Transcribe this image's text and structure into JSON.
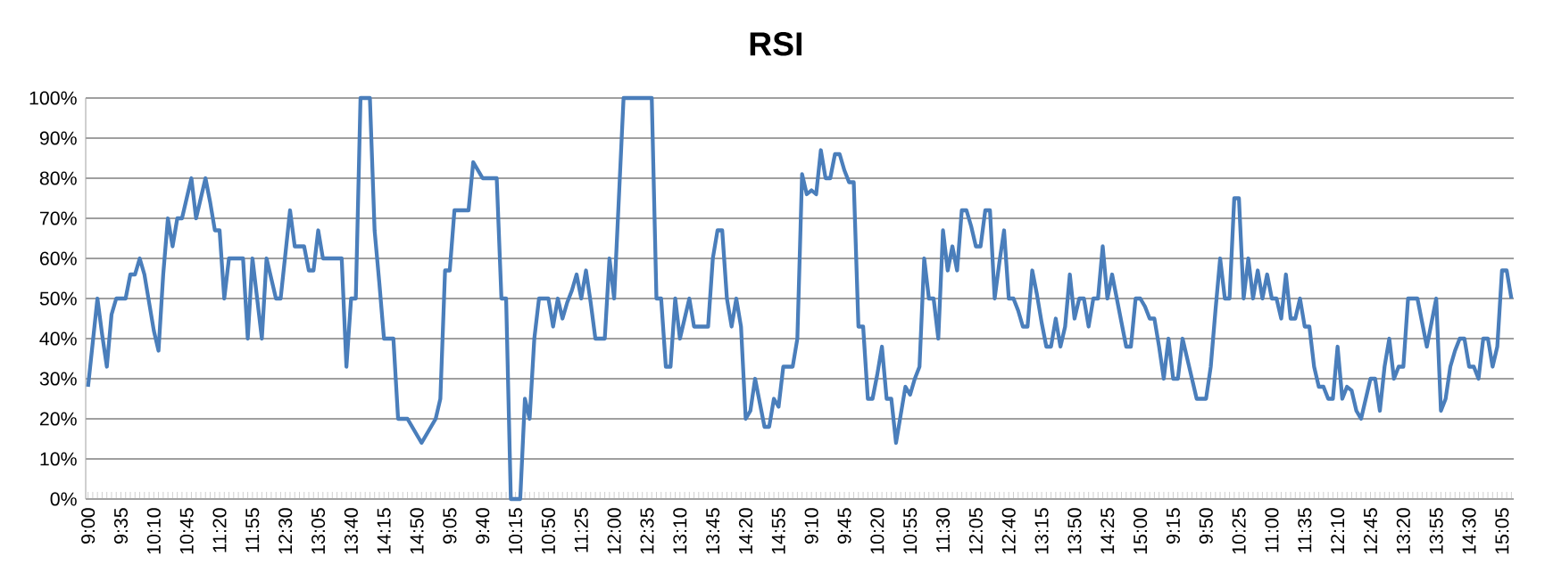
{
  "chart_data": {
    "type": "line",
    "title": "RSI",
    "categories": [
      "9:00",
      null,
      null,
      null,
      null,
      null,
      null,
      "9:35",
      null,
      null,
      null,
      null,
      null,
      null,
      "10:10",
      null,
      null,
      null,
      null,
      null,
      null,
      "10:45",
      null,
      null,
      null,
      null,
      null,
      null,
      "11:20",
      null,
      null,
      null,
      null,
      null,
      null,
      "11:55",
      null,
      null,
      null,
      null,
      null,
      null,
      "12:30",
      null,
      null,
      null,
      null,
      null,
      null,
      "13:05",
      null,
      null,
      null,
      null,
      null,
      null,
      "13:40",
      null,
      null,
      null,
      null,
      null,
      null,
      "14:15",
      null,
      null,
      null,
      null,
      null,
      null,
      "14:50",
      null,
      null,
      null,
      null,
      null,
      null,
      "9:05",
      null,
      null,
      null,
      null,
      null,
      null,
      "9:40",
      null,
      null,
      null,
      null,
      null,
      null,
      "10:15",
      null,
      null,
      null,
      null,
      null,
      null,
      "10:50",
      null,
      null,
      null,
      null,
      null,
      null,
      "11:25",
      null,
      null,
      null,
      null,
      null,
      null,
      "12:00",
      null,
      null,
      null,
      null,
      null,
      null,
      "12:35",
      null,
      null,
      null,
      null,
      null,
      null,
      "13:10",
      null,
      null,
      null,
      null,
      null,
      null,
      "13:45",
      null,
      null,
      null,
      null,
      null,
      null,
      "14:20",
      null,
      null,
      null,
      null,
      null,
      null,
      "14:55",
      null,
      null,
      null,
      null,
      null,
      null,
      "9:10",
      null,
      null,
      null,
      null,
      null,
      null,
      "9:45",
      null,
      null,
      null,
      null,
      null,
      null,
      "10:20",
      null,
      null,
      null,
      null,
      null,
      null,
      "10:55",
      null,
      null,
      null,
      null,
      null,
      null,
      "11:30",
      null,
      null,
      null,
      null,
      null,
      null,
      "12:05",
      null,
      null,
      null,
      null,
      null,
      null,
      "12:40",
      null,
      null,
      null,
      null,
      null,
      null,
      "13:15",
      null,
      null,
      null,
      null,
      null,
      null,
      "13:50",
      null,
      null,
      null,
      null,
      null,
      null,
      "14:25",
      null,
      null,
      null,
      null,
      null,
      null,
      "15:00",
      null,
      null,
      null,
      null,
      null,
      null,
      "9:15",
      null,
      null,
      null,
      null,
      null,
      null,
      "9:50",
      null,
      null,
      null,
      null,
      null,
      null,
      "10:25",
      null,
      null,
      null,
      null,
      null,
      null,
      "11:00",
      null,
      null,
      null,
      null,
      null,
      null,
      "11:35",
      null,
      null,
      null,
      null,
      null,
      null,
      "12:10",
      null,
      null,
      null,
      null,
      null,
      null,
      "12:45",
      null,
      null,
      null,
      null,
      null,
      null,
      "13:20",
      null,
      null,
      null,
      null,
      null,
      null,
      "13:55",
      null,
      null,
      null,
      null,
      null,
      null,
      "14:30",
      null,
      null,
      null,
      null,
      null,
      null,
      "15:05",
      null,
      null
    ],
    "ylim": [
      0,
      100
    ],
    "yticks": [
      {
        "value": 0,
        "label": "0%"
      },
      {
        "value": 10,
        "label": "10%"
      },
      {
        "value": 20,
        "label": "20%"
      },
      {
        "value": 30,
        "label": "30%"
      },
      {
        "value": 40,
        "label": "40%"
      },
      {
        "value": 50,
        "label": "50%"
      },
      {
        "value": 60,
        "label": "60%"
      },
      {
        "value": 70,
        "label": "70%"
      },
      {
        "value": 80,
        "label": "80%"
      },
      {
        "value": 90,
        "label": "90%"
      },
      {
        "value": 100,
        "label": "100%"
      }
    ],
    "grid": "y",
    "series": [
      {
        "color": "#4a7ebb",
        "values": [
          28,
          39,
          50,
          41,
          33,
          46,
          50,
          50,
          50,
          56,
          56,
          60,
          56,
          49,
          42,
          37,
          56,
          70,
          63,
          70,
          70,
          75,
          80,
          70,
          75,
          80,
          74,
          67,
          67,
          50,
          60,
          60,
          60,
          60,
          40,
          60,
          50,
          40,
          60,
          55,
          50,
          50,
          61,
          72,
          63,
          63,
          63,
          57,
          57,
          67,
          60,
          60,
          60,
          60,
          60,
          33,
          50,
          50,
          100,
          100,
          100,
          67,
          54,
          40,
          40,
          40,
          20,
          20,
          20,
          18,
          16,
          14,
          16,
          18,
          20,
          25,
          57,
          57,
          72,
          72,
          72,
          72,
          84,
          82,
          80,
          80,
          80,
          80,
          50,
          50,
          0,
          0,
          0,
          25,
          20,
          40,
          50,
          50,
          50,
          43,
          50,
          45,
          49,
          52,
          56,
          50,
          57,
          49,
          40,
          40,
          40,
          60,
          50,
          75,
          100,
          100,
          100,
          100,
          100,
          100,
          100,
          50,
          50,
          33,
          33,
          50,
          40,
          45,
          50,
          43,
          43,
          43,
          43,
          60,
          67,
          67,
          50,
          43,
          50,
          43,
          20,
          22,
          30,
          24,
          18,
          18,
          25,
          23,
          33,
          33,
          33,
          40,
          81,
          76,
          77,
          76,
          87,
          80,
          80,
          86,
          86,
          82,
          79,
          79,
          43,
          43,
          25,
          25,
          31,
          38,
          25,
          25,
          14,
          21,
          28,
          26,
          30,
          33,
          60,
          50,
          50,
          40,
          67,
          57,
          63,
          57,
          72,
          72,
          68,
          63,
          63,
          72,
          72,
          50,
          59,
          67,
          50,
          50,
          47,
          43,
          43,
          57,
          51,
          44,
          38,
          38,
          45,
          38,
          43,
          56,
          45,
          50,
          50,
          43,
          50,
          50,
          63,
          50,
          56,
          50,
          44,
          38,
          38,
          50,
          50,
          48,
          45,
          45,
          38,
          30,
          40,
          30,
          30,
          40,
          35,
          30,
          25,
          25,
          25,
          33,
          47,
          60,
          50,
          50,
          75,
          75,
          50,
          60,
          50,
          57,
          50,
          56,
          50,
          50,
          45,
          56,
          45,
          45,
          50,
          43,
          43,
          33,
          28,
          28,
          25,
          25,
          38,
          25,
          28,
          27,
          22,
          20,
          25,
          30,
          30,
          22,
          33,
          40,
          30,
          33,
          33,
          50,
          50,
          50,
          44,
          38,
          44,
          50,
          22,
          25,
          33,
          37,
          40,
          40,
          33,
          33,
          30,
          40,
          40,
          33,
          38,
          57,
          57,
          50
        ]
      }
    ]
  }
}
